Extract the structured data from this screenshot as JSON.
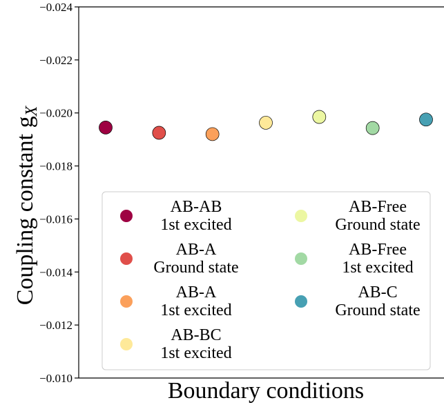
{
  "chart_data": {
    "type": "scatter",
    "xlabel": "Boundary conditions",
    "ylabel": "Coupling constant g",
    "ylabel_subscript": "X",
    "ylim": [
      -0.024,
      -0.01
    ],
    "y_ticks": [
      -0.024,
      -0.022,
      -0.02,
      -0.018,
      -0.016,
      -0.014,
      -0.012,
      -0.01
    ],
    "y_tick_labels": [
      "−0.024",
      "−0.022",
      "−0.020",
      "−0.018",
      "−0.016",
      "−0.014",
      "−0.012",
      "−0.010"
    ],
    "y_inverted": true,
    "x_ticks_shown": false,
    "grid": false,
    "legend_placement": "lower-center",
    "legend_columns": 2,
    "series": [
      {
        "name": "AB-AB\n1st excited",
        "x": 1,
        "y": -0.01945,
        "color": "#9e0142"
      },
      {
        "name": "AB-A\nGround state",
        "x": 2,
        "y": -0.01925,
        "color": "#e04f4a"
      },
      {
        "name": "AB-A\n1st excited",
        "x": 3,
        "y": -0.0192,
        "color": "#fba05b"
      },
      {
        "name": "AB-BC\n1st excited",
        "x": 4,
        "y": -0.01963,
        "color": "#fee999"
      },
      {
        "name": "AB-Free\nGround state",
        "x": 5,
        "y": -0.01985,
        "color": "#ecf7a2"
      },
      {
        "name": "AB-Free\n1st excited",
        "x": 6,
        "y": -0.01943,
        "color": "#a2d9a4"
      },
      {
        "name": "AB-C\nGround state",
        "x": 7,
        "y": -0.01975,
        "color": "#47a0b3"
      }
    ]
  }
}
